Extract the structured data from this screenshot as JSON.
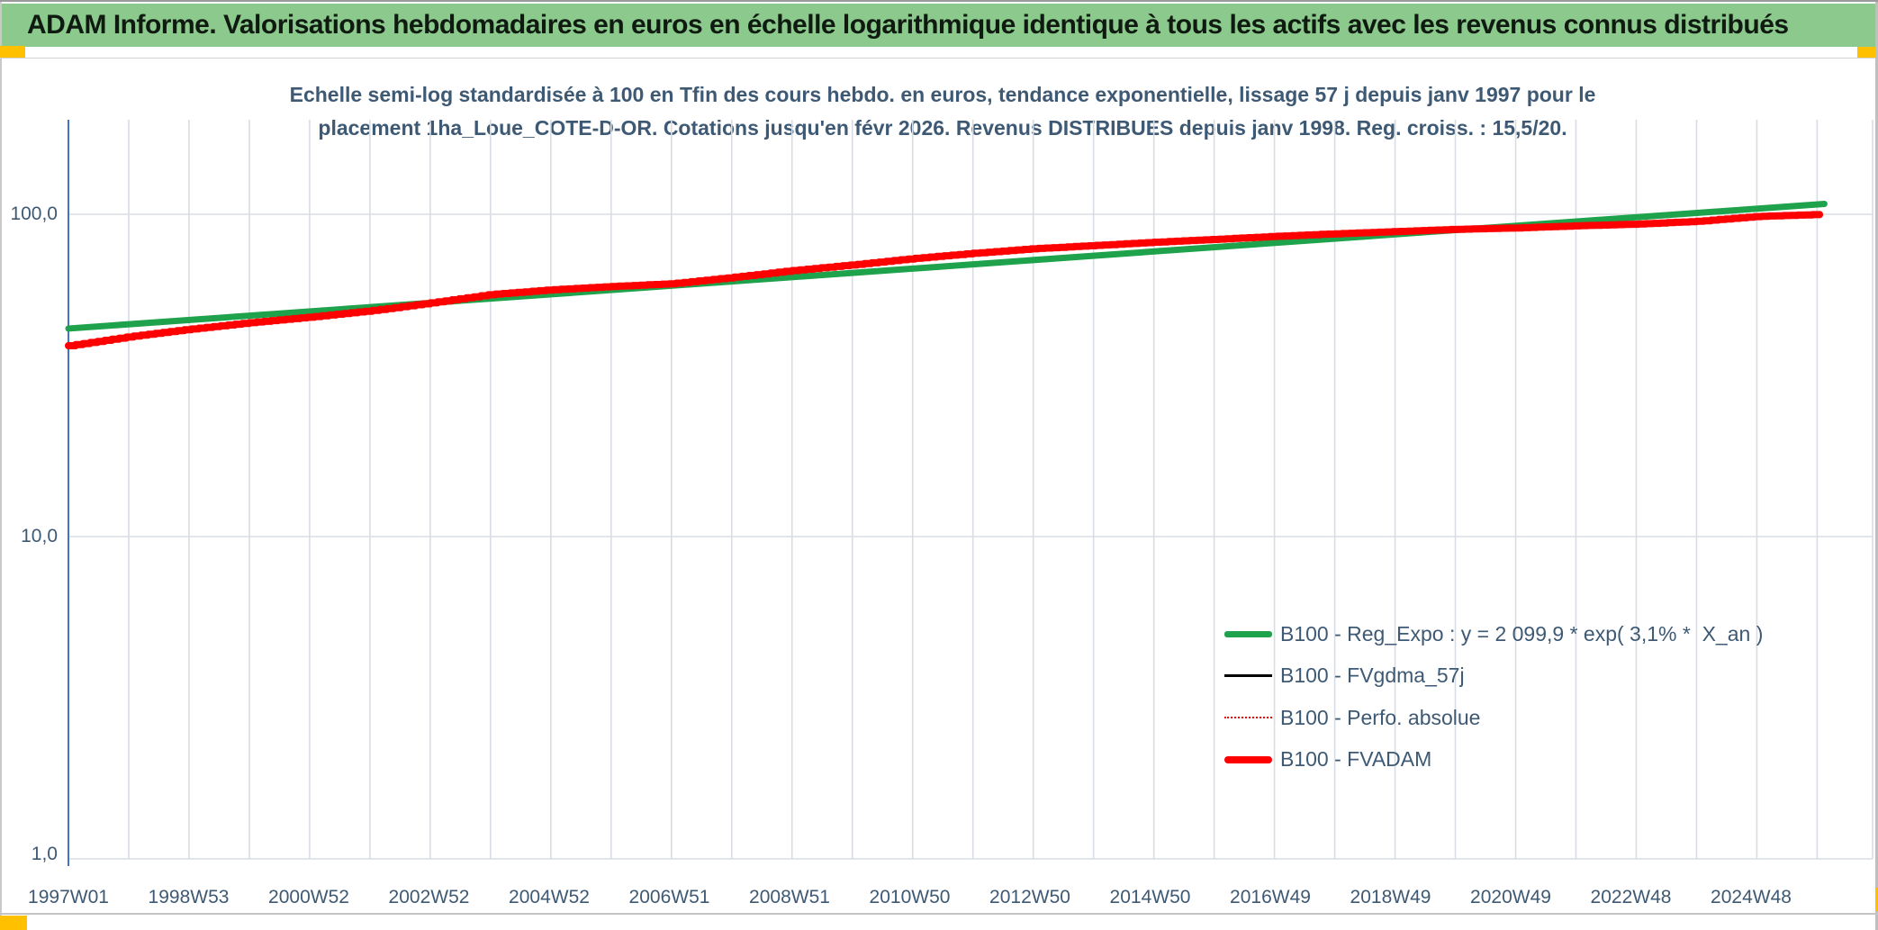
{
  "header": {
    "title": "ADAM Informe. Valorisations hebdomadaires en euros en échelle logarithmique identique à tous les actifs avec les revenus connus distribués"
  },
  "chart": {
    "title_line1": "Echelle semi-log standardisée à 100 en Tfin des cours hebdo. en euros, tendance exponentielle, lissage 57 j depuis janv 1997 pour le",
    "title_line2": "placement 1ha_Loue_COTE-D-OR. Cotations jusqu'en févr 2026. Revenus DISTRIBUES depuis janv 1998. Reg. croiss. : 15,5/20."
  },
  "colors": {
    "header_bg": "#8CC98C",
    "accent_text": "#3E5974",
    "regression_green": "#1FA24C",
    "series_red": "#FF0000",
    "series_black": "#000000",
    "axis_blue": "#4472C4",
    "gridline": "#D8DDE4",
    "marker_yellow": "#FFC000"
  },
  "chart_data": {
    "type": "line",
    "y_scale": "log",
    "grid": true,
    "legend_position": "inside-right-bottom",
    "title": "Echelle semi-log standardisée à 100 en Tfin des cours hebdo. en euros, tendance exponentielle, lissage 57 j depuis janv 1997 pour le placement 1ha_Loue_COTE-D-OR. Cotations jusqu'en févr 2026. Revenus DISTRIBUES depuis janv 1998. Reg. croiss. : 15,5/20.",
    "xlabel": "",
    "ylabel": "",
    "ylim": [
      1,
      196
    ],
    "y_ticks": [
      100,
      10,
      1
    ],
    "y_tick_labels": [
      "100,0",
      "10,0",
      "1,0"
    ],
    "x_tick_labels": [
      "1997W01",
      "1998W53",
      "2000W52",
      "2002W52",
      "2004W52",
      "2006W51",
      "2008W51",
      "2010W50",
      "2012W50",
      "2014W50",
      "2016W49",
      "2018W49",
      "2020W49",
      "2022W48",
      "2024W48"
    ],
    "x_years": [
      1997,
      1998,
      1999,
      2000,
      2001,
      2002,
      2003,
      2004,
      2005,
      2006,
      2007,
      2008,
      2009,
      2010,
      2011,
      2012,
      2013,
      2014,
      2015,
      2016,
      2017,
      2018,
      2019,
      2020,
      2021,
      2022,
      2023,
      2024,
      2025,
      2026.12
    ],
    "series": [
      {
        "name": "B100 - Reg_Expo : y = 2 099,9 * exp( 3,1% *  X_an )",
        "color": "#1FA24C",
        "style": "solid-thick",
        "values": [
          44.2,
          45.6,
          47.0,
          48.5,
          50.0,
          51.5,
          53.1,
          54.8,
          56.5,
          58.2,
          60.0,
          61.9,
          63.8,
          65.8,
          67.8,
          70.0,
          72.1,
          74.4,
          76.7,
          79.1,
          81.5,
          84.1,
          86.7,
          89.4,
          92.1,
          95.0,
          98.0,
          101.0,
          104.1,
          107.7
        ]
      },
      {
        "name": "B100 - FVgdma_57j",
        "color": "#000000",
        "style": "solid-thin",
        "values_same_as": "B100 - FVADAM"
      },
      {
        "name": "B100 - Perfo. absolue",
        "color": "#FF0000",
        "style": "dotted",
        "values_same_as": "B100 - FVADAM"
      },
      {
        "name": "B100 - FVADAM",
        "color": "#FF0000",
        "style": "solid-thick",
        "values": [
          39.1,
          41.7,
          44.0,
          46.1,
          48.0,
          50.2,
          53.1,
          56.4,
          58.3,
          59.7,
          60.9,
          63.7,
          66.9,
          69.7,
          72.9,
          75.7,
          78.2,
          80.0,
          81.9,
          83.6,
          85.4,
          87.0,
          88.4,
          89.8,
          90.7,
          92.1,
          93.2,
          95.1,
          98.5,
          100.0
        ]
      }
    ]
  }
}
